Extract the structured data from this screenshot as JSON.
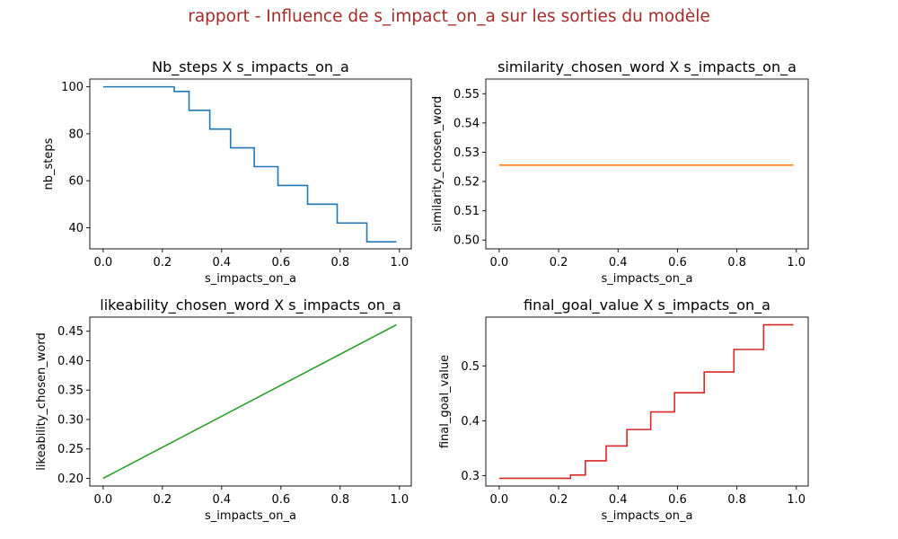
{
  "suptitle": "rapport - Influence de s_impact_on_a sur les sorties du modèle",
  "colors": {
    "suptitle": "#a52a2a",
    "blue": "#1f77b4",
    "orange": "#ff7f0e",
    "green": "#2ca02c",
    "red": "#d62728"
  },
  "chart_data": [
    {
      "type": "line",
      "title": "Nb_steps X s_impacts_on_a",
      "xlabel": "s_impacts_on_a",
      "ylabel": "nb_steps",
      "xlim": [
        -0.045,
        1.04
      ],
      "ylim": [
        31,
        103.3
      ],
      "xticks": [
        0.0,
        0.2,
        0.4,
        0.6,
        0.8,
        1.0
      ],
      "xtick_labels": [
        "0.0",
        "0.2",
        "0.4",
        "0.6",
        "0.8",
        "1.0"
      ],
      "yticks": [
        40,
        60,
        80,
        100
      ],
      "ytick_labels": [
        "40",
        "60",
        "80",
        "100"
      ],
      "color": "#1f77b4",
      "step": true,
      "x": [
        0.0,
        0.24,
        0.29,
        0.36,
        0.43,
        0.51,
        0.59,
        0.69,
        0.79,
        0.89,
        0.99
      ],
      "y": [
        100,
        98,
        90,
        82,
        74,
        66,
        58,
        50,
        42,
        34,
        34
      ]
    },
    {
      "type": "line",
      "title": "similarity_chosen_word X s_impacts_on_a",
      "xlabel": "s_impacts_on_a",
      "ylabel": "similarity_chosen_word",
      "xlim": [
        -0.045,
        1.04
      ],
      "ylim": [
        0.497,
        0.555
      ],
      "xticks": [
        0.0,
        0.2,
        0.4,
        0.6,
        0.8,
        1.0
      ],
      "xtick_labels": [
        "0.0",
        "0.2",
        "0.4",
        "0.6",
        "0.8",
        "1.0"
      ],
      "yticks": [
        0.5,
        0.51,
        0.52,
        0.53,
        0.54,
        0.55
      ],
      "ytick_labels": [
        "0.50",
        "0.51",
        "0.52",
        "0.53",
        "0.54",
        "0.55"
      ],
      "color": "#ff7f0e",
      "step": false,
      "x": [
        0.0,
        0.99
      ],
      "y": [
        0.5256,
        0.5256
      ]
    },
    {
      "type": "line",
      "title": "likeability_chosen_word X s_impacts_on_a",
      "xlabel": "s_impacts_on_a",
      "ylabel": "likeability_chosen_word",
      "xlim": [
        -0.045,
        1.04
      ],
      "ylim": [
        0.187,
        0.474
      ],
      "xticks": [
        0.0,
        0.2,
        0.4,
        0.6,
        0.8,
        1.0
      ],
      "xtick_labels": [
        "0.0",
        "0.2",
        "0.4",
        "0.6",
        "0.8",
        "1.0"
      ],
      "yticks": [
        0.2,
        0.25,
        0.3,
        0.35,
        0.4,
        0.45
      ],
      "ytick_labels": [
        "0.20",
        "0.25",
        "0.30",
        "0.35",
        "0.40",
        "0.45"
      ],
      "color": "#2ca02c",
      "step": false,
      "x": [
        0.0,
        0.99
      ],
      "y": [
        0.2,
        0.461
      ]
    },
    {
      "type": "line",
      "title": "final_goal_value X s_impacts_on_a",
      "xlabel": "s_impacts_on_a",
      "ylabel": "final_goal_value",
      "xlim": [
        -0.045,
        1.04
      ],
      "ylim": [
        0.281,
        0.589
      ],
      "xticks": [
        0.0,
        0.2,
        0.4,
        0.6,
        0.8,
        1.0
      ],
      "xtick_labels": [
        "0.0",
        "0.2",
        "0.4",
        "0.6",
        "0.8",
        "1.0"
      ],
      "yticks": [
        0.3,
        0.4,
        0.5
      ],
      "ytick_labels": [
        "0.3",
        "0.4",
        "0.5"
      ],
      "color": "#d62728",
      "step": true,
      "x": [
        0.0,
        0.24,
        0.29,
        0.36,
        0.43,
        0.51,
        0.59,
        0.69,
        0.79,
        0.89,
        0.99
      ],
      "y": [
        0.295,
        0.301,
        0.327,
        0.354,
        0.384,
        0.416,
        0.451,
        0.489,
        0.53,
        0.575,
        0.575
      ]
    }
  ]
}
